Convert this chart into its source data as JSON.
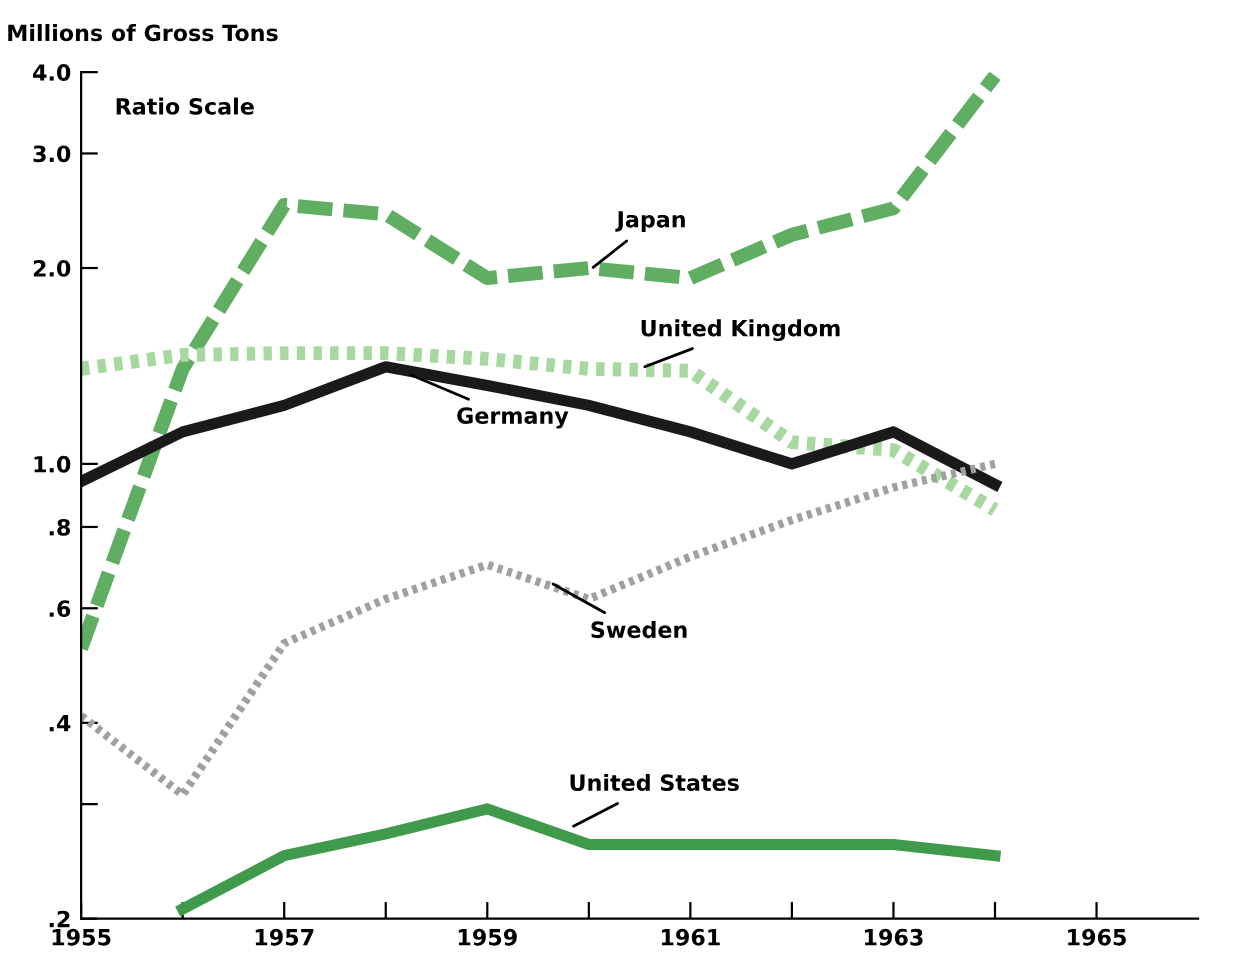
{
  "chart_data": {
    "type": "line",
    "ylabel": "Millions of Gross Tons",
    "log": "y",
    "x": [
      1955,
      1956,
      1957,
      1958,
      1959,
      1960,
      1961,
      1962,
      1963,
      1964
    ],
    "series": [
      {
        "name": "Japan",
        "color": "#5fae62",
        "line_style": "dashed",
        "values": [
          0.52,
          1.4,
          2.5,
          2.42,
          1.93,
          2.0,
          1.93,
          2.25,
          2.47,
          3.95
        ]
      },
      {
        "name": "United Kingdom",
        "color": "#a6d8a0",
        "line_style": "dotted",
        "values": [
          1.4,
          1.47,
          1.48,
          1.48,
          1.45,
          1.4,
          1.39,
          1.08,
          1.05,
          0.85
        ]
      },
      {
        "name": "Germany",
        "color": "#1a1a1a",
        "line_style": "solid",
        "values": [
          0.94,
          1.12,
          1.23,
          1.41,
          1.32,
          1.23,
          1.12,
          1.0,
          1.12,
          0.93
        ]
      },
      {
        "name": "Sweden",
        "color": "#a0a0a0",
        "line_style": "dotted",
        "values": [
          0.41,
          0.31,
          0.53,
          0.62,
          0.7,
          0.62,
          0.72,
          0.82,
          0.92,
          1.0
        ]
      },
      {
        "name": "United States",
        "color": "#3f9a4c",
        "line_style": "solid",
        "values": [
          null,
          0.207,
          0.25,
          0.27,
          0.295,
          0.26,
          0.26,
          0.26,
          0.26,
          0.25
        ]
      }
    ],
    "xlim": [
      1955,
      1966
    ],
    "xticks": [
      1955,
      {
        "value": 1956,
        "label": null
      },
      1957,
      {
        "value": 1958,
        "label": null
      },
      1959,
      {
        "value": 1960,
        "label": null
      },
      1961,
      {
        "value": 1962,
        "label": null
      },
      1963,
      {
        "value": 1964,
        "label": null
      },
      1965
    ],
    "ylim": [
      0.2,
      4.0
    ],
    "yticks": [
      {
        "value": 0.2,
        "label": ".2"
      },
      {
        "value": 0.3,
        "label": null
      },
      {
        "value": 0.4,
        "label": ".4"
      },
      {
        "value": 0.6,
        "label": ".6"
      },
      {
        "value": 0.8,
        "label": ".8"
      },
      {
        "value": 1.0,
        "label": "1.0"
      },
      {
        "value": 2.0,
        "label": "2.0"
      },
      {
        "value": 3.0,
        "label": "3.0"
      },
      {
        "value": 4.0,
        "label": "4.0"
      }
    ],
    "annotations": [
      "Ratio Scale"
    ],
    "grid": false,
    "legend": false,
    "marker": "none"
  }
}
